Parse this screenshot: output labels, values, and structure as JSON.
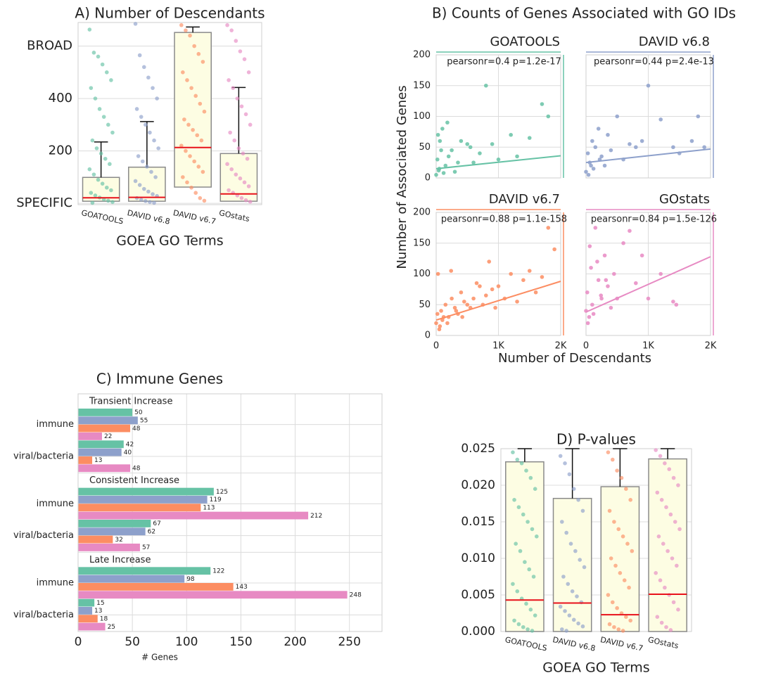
{
  "chart_data": [
    {
      "type": "box",
      "title": "A) Number of Descendants",
      "x_label": "GOEA GO Terms",
      "categories": [
        "GOATOOLS",
        "DAVID v6.8",
        "DAVID v6.7",
        "GOstats"
      ],
      "colors": [
        "#66c2a5",
        "#8da0cb",
        "#fc8d62",
        "#e78ac3"
      ],
      "ylim": [
        -5,
        690
      ],
      "yticks": [
        {
          "value": 0,
          "label": "SPECIFIC"
        },
        200,
        400,
        {
          "value": 600,
          "label": "BROAD"
        }
      ],
      "grid": true,
      "q1": [
        8,
        8,
        62,
        8
      ],
      "median": [
        21,
        23,
        213,
        36
      ],
      "q3": [
        99,
        138,
        652,
        190
      ],
      "whisker_high": [
        234,
        312,
        673,
        442
      ],
      "points": [
        [
          663,
          575,
          560,
          530,
          500,
          470,
          440,
          400,
          360,
          330,
          300,
          270,
          240,
          210,
          190,
          170,
          150,
          130,
          110,
          90,
          75,
          60,
          50,
          40,
          30,
          22,
          15,
          10,
          5,
          2
        ],
        [
          685,
          565,
          520,
          480,
          440,
          400,
          360,
          330,
          300,
          270,
          240,
          210,
          180,
          160,
          140,
          120,
          100,
          85,
          70,
          55,
          45,
          35,
          28,
          20,
          14,
          9,
          5,
          2
        ],
        [
          680,
          660,
          640,
          600,
          570,
          540,
          500,
          470,
          440,
          410,
          380,
          350,
          320,
          300,
          280,
          260,
          240,
          220,
          200,
          180,
          160,
          140,
          120,
          100,
          80,
          60,
          40,
          20,
          10
        ],
        [
          680,
          660,
          620,
          580,
          550,
          500,
          470,
          440,
          400,
          370,
          340,
          300,
          270,
          240,
          210,
          190,
          170,
          150,
          130,
          110,
          95,
          80,
          65,
          50,
          40,
          30,
          20,
          12,
          6
        ]
      ]
    },
    {
      "type": "scatter",
      "title": "B) Counts of Genes Associated with GO IDs",
      "x_label": "Number of Descendants",
      "y_label": "Number of Associated Genes",
      "xlim": [
        0,
        2000
      ],
      "xticks": [
        0,
        {
          "value": 1000,
          "label": "1K"
        },
        {
          "value": 2000,
          "label": "2K"
        }
      ],
      "ylim": [
        0,
        200
      ],
      "yticks": [
        0,
        50,
        100,
        150,
        200
      ],
      "grid": true,
      "series": [
        {
          "name": "GOATOOLS",
          "color": "#66c2a5",
          "annotation": "pearsonr=0.4 p=1.2e-17",
          "x": [
            0,
            20,
            40,
            60,
            100,
            150,
            200,
            250,
            300,
            350,
            400,
            500,
            550,
            600,
            700,
            800,
            900,
            1000,
            1200,
            1300,
            1500,
            1700,
            1800,
            50,
            120,
            180,
            80,
            30
          ],
          "y": [
            5,
            30,
            12,
            60,
            80,
            20,
            35,
            45,
            10,
            25,
            60,
            55,
            50,
            25,
            40,
            150,
            55,
            30,
            70,
            35,
            65,
            120,
            100,
            15,
            8,
            90,
            45,
            70
          ],
          "fit_x": [
            0,
            2000
          ],
          "fit_y": [
            15,
            36
          ]
        },
        {
          "name": "DAVID v6.8",
          "color": "#8da0cb",
          "annotation": "pearsonr=0.44 p=2.4e-13",
          "x": [
            0,
            30,
            60,
            100,
            150,
            200,
            250,
            300,
            400,
            500,
            600,
            700,
            800,
            900,
            1000,
            1200,
            1400,
            1500,
            1700,
            1800,
            1900,
            40,
            120,
            220,
            350,
            80
          ],
          "y": [
            10,
            40,
            25,
            60,
            50,
            80,
            35,
            20,
            45,
            100,
            30,
            55,
            50,
            60,
            150,
            95,
            50,
            40,
            60,
            100,
            50,
            5,
            15,
            30,
            70,
            20
          ],
          "fit_x": [
            0,
            2000
          ],
          "fit_y": [
            25,
            47
          ]
        },
        {
          "name": "DAVID v6.7",
          "color": "#fc8d62",
          "annotation": "pearsonr=0.88 p=1.1e-158",
          "x": [
            0,
            20,
            50,
            80,
            100,
            150,
            200,
            250,
            300,
            350,
            400,
            450,
            500,
            600,
            700,
            800,
            900,
            1000,
            1100,
            1200,
            1300,
            1400,
            1500,
            1600,
            1700,
            1800,
            1900,
            30,
            60,
            120,
            180,
            240,
            320,
            420,
            550,
            650,
            750,
            850,
            950
          ],
          "y": [
            20,
            35,
            10,
            40,
            25,
            50,
            30,
            60,
            45,
            35,
            70,
            55,
            50,
            60,
            80,
            65,
            75,
            80,
            60,
            100,
            55,
            90,
            105,
            70,
            95,
            175,
            140,
            100,
            15,
            30,
            20,
            105,
            40,
            30,
            45,
            85,
            50,
            120,
            45
          ],
          "fit_x": [
            0,
            2000
          ],
          "fit_y": [
            25,
            88
          ]
        },
        {
          "name": "GOstats",
          "color": "#e78ac3",
          "annotation": "pearsonr=0.84 p=1.5e-126",
          "x": [
            0,
            20,
            50,
            80,
            100,
            150,
            200,
            250,
            300,
            350,
            400,
            450,
            500,
            600,
            700,
            800,
            900,
            1000,
            1200,
            1400,
            1450,
            30,
            60,
            120,
            180,
            240,
            320
          ],
          "y": [
            40,
            70,
            30,
            110,
            50,
            175,
            90,
            60,
            130,
            80,
            45,
            100,
            60,
            150,
            170,
            85,
            130,
            60,
            100,
            55,
            50,
            20,
            145,
            35,
            120,
            65,
            90
          ],
          "fit_x": [
            0,
            2000
          ],
          "fit_y": [
            38,
            128
          ]
        }
      ]
    },
    {
      "type": "bar",
      "orientation": "horizontal",
      "title": "C) Immune Genes",
      "x_label": "# Genes",
      "groups": [
        "Transient Increase",
        "Consistent Increase",
        "Late Increase"
      ],
      "categories": [
        "immune",
        "viral/bacteria",
        "immune",
        "viral/bacteria",
        "immune",
        "viral/bacteria"
      ],
      "xlim": [
        0,
        280
      ],
      "xticks": [
        0,
        50,
        100,
        150,
        200,
        250
      ],
      "grid": true,
      "series": [
        {
          "color": "#66c2a5",
          "values": [
            50,
            42,
            125,
            67,
            122,
            15
          ]
        },
        {
          "color": "#8da0cb",
          "values": [
            55,
            40,
            119,
            62,
            98,
            13
          ]
        },
        {
          "color": "#fc8d62",
          "values": [
            48,
            13,
            113,
            32,
            143,
            18
          ]
        },
        {
          "color": "#e78ac3",
          "values": [
            22,
            48,
            212,
            57,
            248,
            25
          ]
        }
      ]
    },
    {
      "type": "box",
      "title": "D) P-values",
      "x_label": "GOEA GO Terms",
      "categories": [
        "GOATOOLS",
        "DAVID v6.8",
        "DAVID v6.7",
        "GOstats"
      ],
      "colors": [
        "#66c2a5",
        "#8da0cb",
        "#fc8d62",
        "#e78ac3"
      ],
      "ylim": [
        0,
        0.025
      ],
      "yticks": [
        {
          "value": 0,
          "label": "0.000"
        },
        {
          "value": 0.005,
          "label": "0.005"
        },
        {
          "value": 0.01,
          "label": "0.010"
        },
        {
          "value": 0.015,
          "label": "0.015"
        },
        {
          "value": 0.02,
          "label": "0.020"
        },
        {
          "value": 0.025,
          "label": "0.025"
        }
      ],
      "grid": true,
      "q1": [
        0,
        0,
        0,
        0
      ],
      "median": [
        0.0043,
        0.0039,
        0.0023,
        0.0051
      ],
      "q3": [
        0.0232,
        0.0182,
        0.0198,
        0.0236
      ],
      "whisker_high": [
        0.025,
        0.025,
        0.025,
        0.025
      ],
      "points": [
        [
          0.0245,
          0.0235,
          0.023,
          0.022,
          0.021,
          0.0195,
          0.018,
          0.017,
          0.016,
          0.015,
          0.014,
          0.013,
          0.012,
          0.011,
          0.0095,
          0.0085,
          0.0075,
          0.0065,
          0.0055,
          0.0045,
          0.0038,
          0.003,
          0.0022,
          0.0015,
          0.001,
          0.0006,
          0.0003,
          0.0001
        ],
        [
          0.024,
          0.023,
          0.0215,
          0.0195,
          0.018,
          0.0165,
          0.015,
          0.0135,
          0.012,
          0.011,
          0.0098,
          0.0088,
          0.0075,
          0.0065,
          0.0055,
          0.0048,
          0.004,
          0.0034,
          0.0028,
          0.0022,
          0.0016,
          0.0011,
          0.0007,
          0.0003,
          0.0001
        ],
        [
          0.0245,
          0.0235,
          0.022,
          0.021,
          0.0195,
          0.018,
          0.0165,
          0.015,
          0.014,
          0.013,
          0.012,
          0.011,
          0.01,
          0.009,
          0.008,
          0.007,
          0.006,
          0.005,
          0.004,
          0.0032,
          0.0025,
          0.002,
          0.0015,
          0.001,
          0.0006,
          0.0003,
          0.0001
        ],
        [
          0.0248,
          0.024,
          0.023,
          0.0222,
          0.021,
          0.02,
          0.019,
          0.018,
          0.017,
          0.016,
          0.015,
          0.014,
          0.013,
          0.012,
          0.011,
          0.01,
          0.009,
          0.008,
          0.007,
          0.006,
          0.005,
          0.004,
          0.003,
          0.002,
          0.0012,
          0.0006,
          0.0002
        ]
      ]
    }
  ]
}
